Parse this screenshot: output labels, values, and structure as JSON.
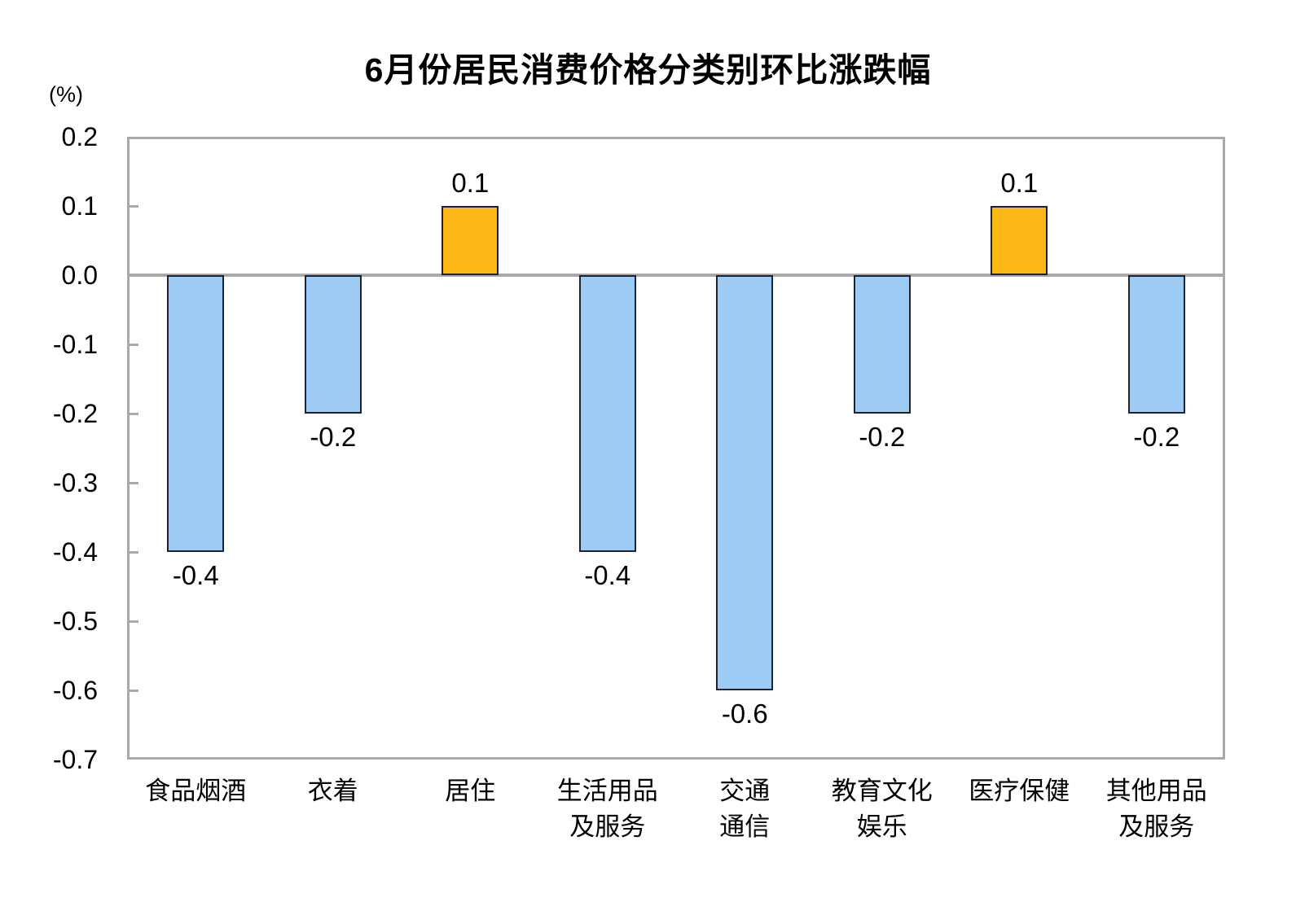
{
  "chart_data": {
    "type": "bar",
    "title": "6月份居民消费价格分类别环比涨跌幅",
    "unit_label": "(%)",
    "categories": [
      "食品烟酒",
      "衣着",
      "居住",
      "生活用品\n及服务",
      "交通\n通信",
      "教育文化\n娱乐",
      "医疗保健",
      "其他用品\n及服务"
    ],
    "values": [
      -0.4,
      -0.2,
      0.1,
      -0.4,
      -0.6,
      -0.2,
      0.1,
      -0.2
    ],
    "value_labels": [
      "-0.4",
      "-0.2",
      "0.1",
      "-0.4",
      "-0.6",
      "-0.2",
      "0.1",
      "-0.2"
    ],
    "yticks": [
      "0.2",
      "0.1",
      "0.0",
      "-0.1",
      "-0.2",
      "-0.3",
      "-0.4",
      "-0.5",
      "-0.6",
      "-0.7"
    ],
    "ylim": [
      -0.7,
      0.2
    ],
    "ytick_step": 0.1,
    "grid": false,
    "legend_position": "none",
    "colors": {
      "positive_bar": "#fbb817",
      "negative_bar": "#9ecbf4",
      "bar_border": "#1c2433",
      "axis_gray": "#a9a9a9",
      "text": "#000000"
    }
  }
}
